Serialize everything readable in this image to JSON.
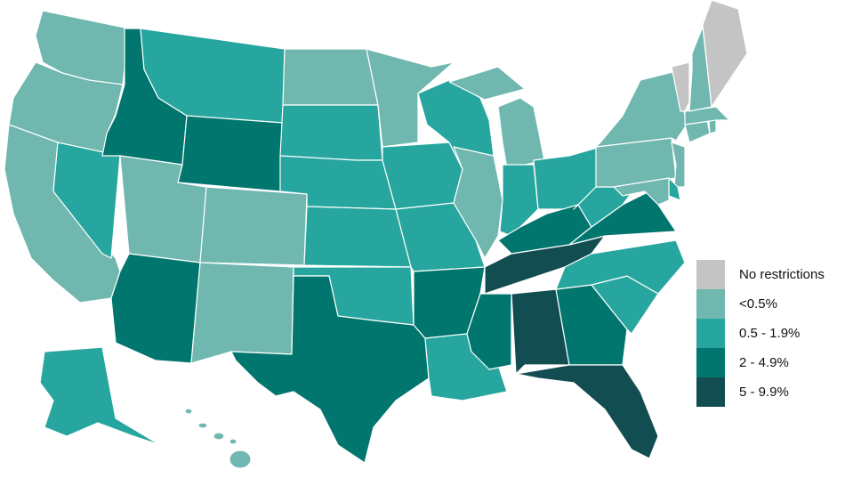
{
  "legend": {
    "categories": [
      {
        "key": "none",
        "label": "No restrictions",
        "color": "#c4c4c4"
      },
      {
        "key": "lt05",
        "label": "<0.5%",
        "color": "#6fb7af"
      },
      {
        "key": "c05",
        "label": "0.5 - 1.9%",
        "color": "#26a69e"
      },
      {
        "key": "c2",
        "label": "2 - 4.9%",
        "color": "#00766e"
      },
      {
        "key": "c5",
        "label": "5 - 9.9%",
        "color": "#124d52"
      }
    ]
  },
  "states": {
    "WA": "lt05",
    "OR": "lt05",
    "CA": "lt05",
    "NV": "c05",
    "ID": "c2",
    "MT": "c05",
    "WY": "c2",
    "UT": "lt05",
    "CO": "lt05",
    "AZ": "c2",
    "NM": "lt05",
    "ND": "lt05",
    "SD": "c05",
    "NE": "c05",
    "KS": "c05",
    "OK": "c05",
    "TX": "c2",
    "MN": "lt05",
    "IA": "c05",
    "MO": "c05",
    "AR": "c2",
    "LA": "c05",
    "WI": "c05",
    "IL": "lt05",
    "MI": "lt05",
    "IN": "c05",
    "OH": "c05",
    "KY": "c2",
    "TN": "c5",
    "MS": "c2",
    "AL": "c5",
    "GA": "c2",
    "FL": "c5",
    "SC": "c05",
    "NC": "c05",
    "VA": "c2",
    "WV": "c05",
    "PA": "lt05",
    "NY": "lt05",
    "NJ": "lt05",
    "DE": "c05",
    "MD": "lt05",
    "CT": "lt05",
    "RI": "lt05",
    "MA": "lt05",
    "VT": "none",
    "NH": "lt05",
    "ME": "none",
    "AK": "c05",
    "HI": "lt05"
  }
}
